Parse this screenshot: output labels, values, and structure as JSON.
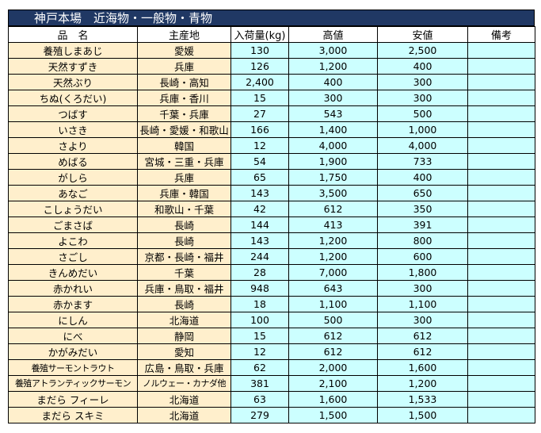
{
  "title": "神戸本場　近海物・一般物・青物",
  "colors": {
    "title_bg": "#203864",
    "text_cols_bg": "#ffefcc",
    "number_cols_bg": "#ccffff"
  },
  "headers": [
    "品　名",
    "主産地",
    "入荷量(kg)",
    "高値",
    "安値",
    "備考"
  ],
  "rows": [
    {
      "name": "養殖しまあじ",
      "origin": "愛媛",
      "qty": "130",
      "high": "3,000",
      "low": "2,500",
      "note": ""
    },
    {
      "name": "天然すずき",
      "origin": "兵庫",
      "qty": "126",
      "high": "1,200",
      "low": "400",
      "note": ""
    },
    {
      "name": "天然ぶり",
      "origin": "長崎・高知",
      "qty": "2,400",
      "high": "400",
      "low": "300",
      "note": ""
    },
    {
      "name": "ちぬ(くろだい)",
      "origin": "兵庫・香川",
      "qty": "15",
      "high": "300",
      "low": "300",
      "note": ""
    },
    {
      "name": "つばす",
      "origin": "千葉・兵庫",
      "qty": "27",
      "high": "543",
      "low": "500",
      "note": ""
    },
    {
      "name": "いさき",
      "origin": "長崎・愛媛・和歌山",
      "qty": "166",
      "high": "1,400",
      "low": "1,000",
      "note": ""
    },
    {
      "name": "さより",
      "origin": "韓国",
      "qty": "12",
      "high": "4,000",
      "low": "4,000",
      "note": ""
    },
    {
      "name": "めばる",
      "origin": "宮城・三重・兵庫",
      "qty": "54",
      "high": "1,900",
      "low": "733",
      "note": ""
    },
    {
      "name": "がしら",
      "origin": "兵庫",
      "qty": "65",
      "high": "1,750",
      "low": "400",
      "note": ""
    },
    {
      "name": "あなご",
      "origin": "兵庫・韓国",
      "qty": "143",
      "high": "3,500",
      "low": "650",
      "note": ""
    },
    {
      "name": "こしょうだい",
      "origin": "和歌山・千葉",
      "qty": "42",
      "high": "612",
      "low": "350",
      "note": ""
    },
    {
      "name": "ごまさば",
      "origin": "長崎",
      "qty": "144",
      "high": "413",
      "low": "391",
      "note": ""
    },
    {
      "name": "よこわ",
      "origin": "長崎",
      "qty": "143",
      "high": "1,200",
      "low": "800",
      "note": ""
    },
    {
      "name": "さごし",
      "origin": "京都・長崎・福井",
      "qty": "244",
      "high": "1,200",
      "low": "600",
      "note": ""
    },
    {
      "name": "きんめだい",
      "origin": "千葉",
      "qty": "28",
      "high": "7,000",
      "low": "1,800",
      "note": ""
    },
    {
      "name": "赤かれい",
      "origin": "兵庫・鳥取・福井",
      "qty": "948",
      "high": "643",
      "low": "300",
      "note": ""
    },
    {
      "name": "赤かます",
      "origin": "長崎",
      "qty": "18",
      "high": "1,100",
      "low": "1,100",
      "note": ""
    },
    {
      "name": "にしん",
      "origin": "北海道",
      "qty": "100",
      "high": "500",
      "low": "300",
      "note": ""
    },
    {
      "name": "にべ",
      "origin": "静岡",
      "qty": "15",
      "high": "612",
      "low": "612",
      "note": ""
    },
    {
      "name": "かがみだい",
      "origin": "愛知",
      "qty": "12",
      "high": "612",
      "low": "612",
      "note": ""
    },
    {
      "name": "養殖サーモントラウト",
      "origin": "広島・鳥取・兵庫",
      "qty": "62",
      "high": "2,000",
      "low": "1,600",
      "note": ""
    },
    {
      "name": "養殖アトランティックサーモン",
      "origin": "ノルウェー・カナダ他",
      "qty": "381",
      "high": "2,100",
      "low": "1,200",
      "note": ""
    },
    {
      "name": "まだら フィーレ",
      "origin": "北海道",
      "qty": "63",
      "high": "1,600",
      "low": "1,533",
      "note": ""
    },
    {
      "name": "まだら スキミ",
      "origin": "北海道",
      "qty": "279",
      "high": "1,500",
      "low": "1,500",
      "note": ""
    }
  ]
}
